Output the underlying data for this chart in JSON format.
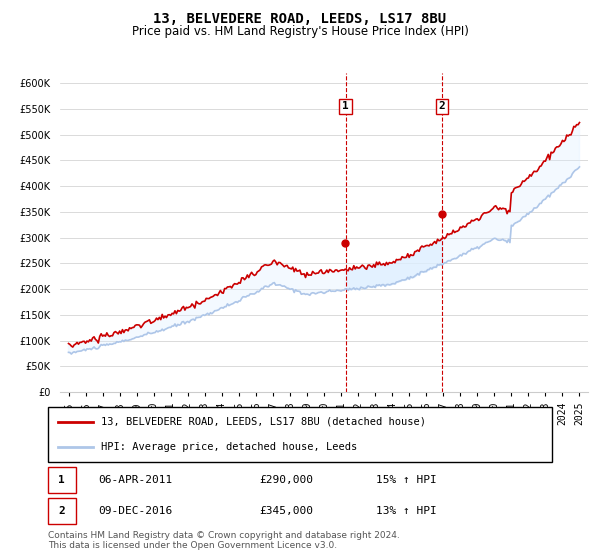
{
  "title": "13, BELVEDERE ROAD, LEEDS, LS17 8BU",
  "subtitle": "Price paid vs. HM Land Registry's House Price Index (HPI)",
  "legend_line1": "13, BELVEDERE ROAD, LEEDS, LS17 8BU (detached house)",
  "legend_line2": "HPI: Average price, detached house, Leeds",
  "transaction1_label": "1",
  "transaction1_date": "06-APR-2011",
  "transaction1_price": "£290,000",
  "transaction1_hpi": "15% ↑ HPI",
  "transaction2_label": "2",
  "transaction2_date": "09-DEC-2016",
  "transaction2_price": "£345,000",
  "transaction2_hpi": "13% ↑ HPI",
  "footnote": "Contains HM Land Registry data © Crown copyright and database right 2024.\nThis data is licensed under the Open Government Licence v3.0.",
  "ylim_min": 0,
  "ylim_max": 620000,
  "hpi_color": "#aec6e8",
  "price_color": "#cc0000",
  "marker_color": "#cc0000",
  "vline_color": "#cc0000",
  "shade_color": "#ddeeff",
  "transaction1_year": 2011.27,
  "transaction2_year": 2016.93,
  "background_color": "#ffffff"
}
